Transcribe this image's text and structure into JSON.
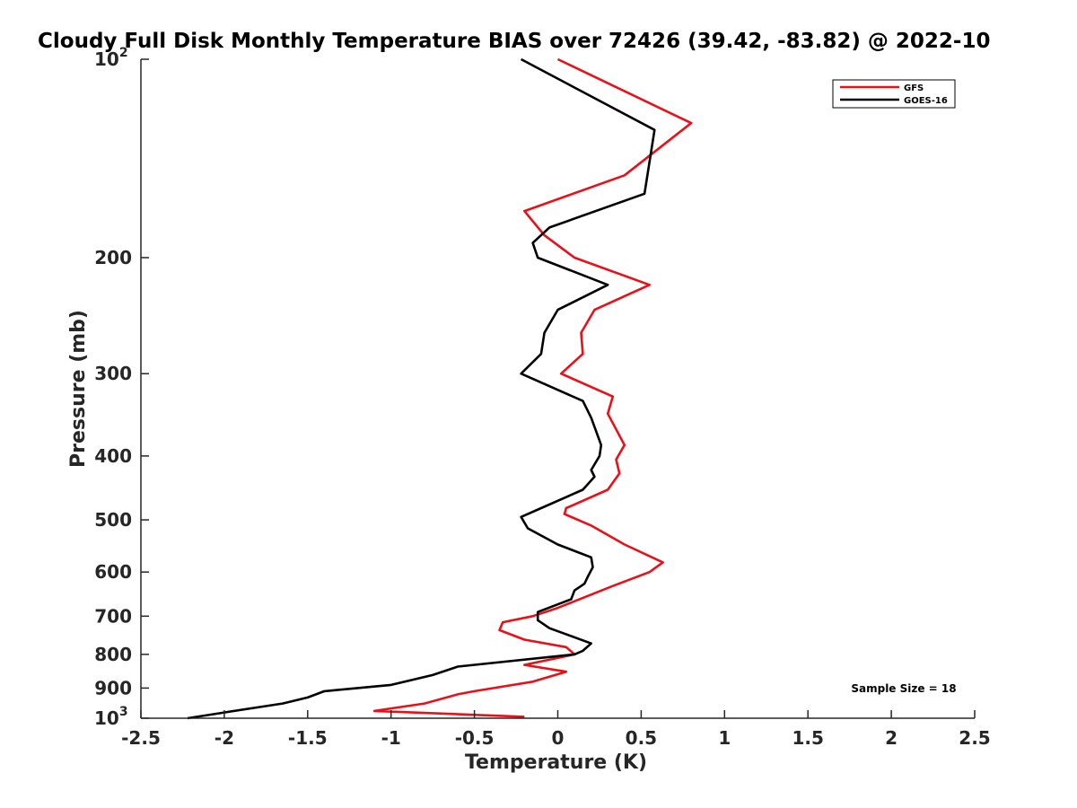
{
  "chart_data": {
    "type": "line",
    "title": "Cloudy Full Disk Monthly Temperature BIAS over 72426 (39.42, -83.82) @ 2022-10",
    "xlabel": "Temperature (K)",
    "ylabel": "Pressure (mb)",
    "xlim": [
      -2.5,
      2.5
    ],
    "ylim": [
      100,
      1000
    ],
    "y_scale": "log",
    "y_reversed": true,
    "x_ticks": [
      -2.5,
      -2,
      -1.5,
      -1,
      -0.5,
      0,
      0.5,
      1,
      1.5,
      2,
      2.5
    ],
    "x_tick_labels": [
      "-2.5",
      "-2",
      "-1.5",
      "-1",
      "-0.5",
      "0",
      "0.5",
      "1",
      "1.5",
      "2",
      "2.5"
    ],
    "y_ticks": [
      100,
      200,
      300,
      400,
      500,
      600,
      700,
      800,
      900,
      1000
    ],
    "y_tick_labels": [
      {
        "base": "10",
        "exp": "2"
      },
      {
        "base": "200",
        "exp": ""
      },
      {
        "base": "300",
        "exp": ""
      },
      {
        "base": "400",
        "exp": ""
      },
      {
        "base": "500",
        "exp": ""
      },
      {
        "base": "600",
        "exp": ""
      },
      {
        "base": "700",
        "exp": ""
      },
      {
        "base": "800",
        "exp": ""
      },
      {
        "base": "900",
        "exp": ""
      },
      {
        "base": "10",
        "exp": "3"
      }
    ],
    "grid": false,
    "legend_position": "top-right",
    "annotation": "Sample Size = 18",
    "series": [
      {
        "name": "GFS",
        "color": "#e8111a",
        "points": [
          [
            0.0,
            100
          ],
          [
            0.8,
            125
          ],
          [
            0.4,
            150
          ],
          [
            -0.2,
            170
          ],
          [
            -0.08,
            185
          ],
          [
            0.1,
            200
          ],
          [
            0.55,
            220
          ],
          [
            0.22,
            240
          ],
          [
            0.14,
            260
          ],
          [
            0.15,
            280
          ],
          [
            0.02,
            300
          ],
          [
            0.33,
            325
          ],
          [
            0.3,
            345
          ],
          [
            0.4,
            385
          ],
          [
            0.35,
            405
          ],
          [
            0.37,
            425
          ],
          [
            0.3,
            450
          ],
          [
            0.05,
            480
          ],
          [
            0.04,
            490
          ],
          [
            0.2,
            510
          ],
          [
            0.4,
            545
          ],
          [
            0.63,
            580
          ],
          [
            0.55,
            600
          ],
          [
            0.33,
            630
          ],
          [
            0.0,
            680
          ],
          [
            -0.15,
            700
          ],
          [
            -0.33,
            715
          ],
          [
            -0.35,
            735
          ],
          [
            -0.2,
            760
          ],
          [
            0.05,
            780
          ],
          [
            0.1,
            800
          ],
          [
            -0.2,
            830
          ],
          [
            0.05,
            850
          ],
          [
            -0.15,
            880
          ],
          [
            -0.5,
            910
          ],
          [
            -0.6,
            920
          ],
          [
            -0.8,
            950
          ],
          [
            -1.1,
            975
          ],
          [
            -0.2,
            995
          ]
        ]
      },
      {
        "name": "GOES-16",
        "color": "#000000",
        "points": [
          [
            -0.22,
            100
          ],
          [
            0.58,
            128
          ],
          [
            0.52,
            160
          ],
          [
            -0.05,
            180
          ],
          [
            -0.15,
            190
          ],
          [
            -0.12,
            200
          ],
          [
            0.3,
            220
          ],
          [
            0.0,
            240
          ],
          [
            -0.08,
            260
          ],
          [
            -0.1,
            280
          ],
          [
            -0.22,
            300
          ],
          [
            0.15,
            330
          ],
          [
            0.2,
            350
          ],
          [
            0.26,
            385
          ],
          [
            0.25,
            400
          ],
          [
            0.2,
            420
          ],
          [
            0.22,
            430
          ],
          [
            0.15,
            450
          ],
          [
            -0.1,
            480
          ],
          [
            -0.22,
            495
          ],
          [
            -0.18,
            515
          ],
          [
            0.0,
            545
          ],
          [
            0.2,
            570
          ],
          [
            0.21,
            590
          ],
          [
            0.18,
            610
          ],
          [
            0.16,
            625
          ],
          [
            0.1,
            640
          ],
          [
            0.08,
            660
          ],
          [
            -0.12,
            690
          ],
          [
            -0.12,
            710
          ],
          [
            -0.05,
            730
          ],
          [
            0.2,
            770
          ],
          [
            0.15,
            790
          ],
          [
            0.1,
            800
          ],
          [
            -0.6,
            835
          ],
          [
            -0.75,
            860
          ],
          [
            -1.0,
            890
          ],
          [
            -1.4,
            910
          ],
          [
            -1.5,
            930
          ],
          [
            -1.65,
            950
          ],
          [
            -2.0,
            980
          ],
          [
            -2.22,
            1000
          ]
        ]
      }
    ]
  }
}
